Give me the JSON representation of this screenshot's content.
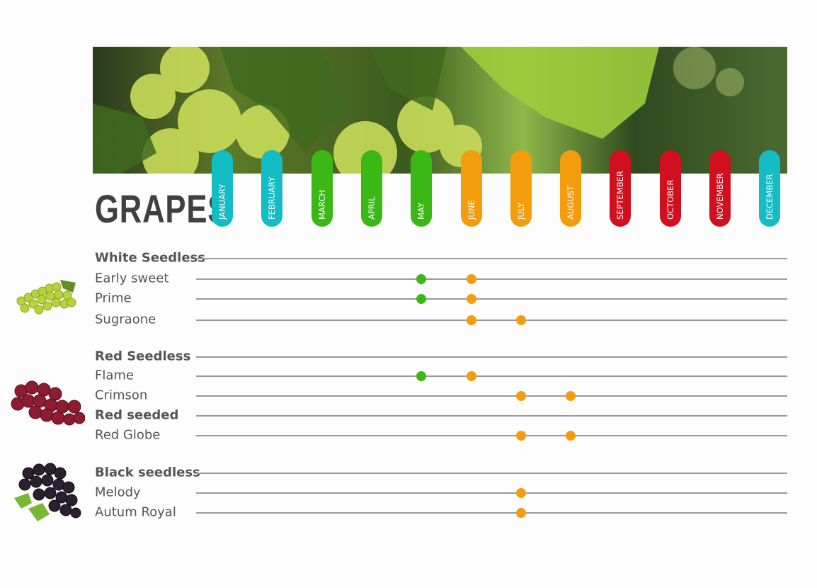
{
  "title": "GRAPES",
  "colors": {
    "winter": "#14bcc4",
    "spring": "#3cb816",
    "summer": "#f39c0c",
    "autumn": "#d0101e"
  },
  "chart_data": {
    "type": "scatter",
    "title": "GRAPES",
    "categories": [
      "JANUARY",
      "FEBRUARY",
      "MARCH",
      "APRIL",
      "MAY",
      "JUNE",
      "JULY",
      "AUGUST",
      "SEPTEMBER",
      "OCTOBER",
      "NOVEMBER",
      "DECEMBER"
    ],
    "month_colors": [
      "winter",
      "winter",
      "spring",
      "spring",
      "spring",
      "summer",
      "summer",
      "summer",
      "autumn",
      "autumn",
      "autumn",
      "winter"
    ],
    "rows": [
      {
        "label": "White Seedless",
        "group": true,
        "months": []
      },
      {
        "label": "Early sweet",
        "group": false,
        "months": [
          "MAY",
          "JUNE"
        ]
      },
      {
        "label": "Prime",
        "group": false,
        "months": [
          "MAY",
          "JUNE"
        ]
      },
      {
        "label": "Sugraone",
        "group": false,
        "months": [
          "JUNE",
          "JULY"
        ]
      },
      {
        "label": "Red Seedless",
        "group": true,
        "months": []
      },
      {
        "label": "Flame",
        "group": false,
        "months": [
          "MAY",
          "JUNE"
        ]
      },
      {
        "label": "Crimson",
        "group": false,
        "months": [
          "JULY",
          "AUGUST"
        ]
      },
      {
        "label": "Red seeded",
        "group": true,
        "months": []
      },
      {
        "label": "Red Globe",
        "group": false,
        "months": [
          "JULY",
          "AUGUST"
        ]
      },
      {
        "label": "Black seedless",
        "group": true,
        "months": []
      },
      {
        "label": "Melody",
        "group": false,
        "months": [
          "JULY"
        ]
      },
      {
        "label": "Autum Royal",
        "group": false,
        "months": [
          "JULY"
        ]
      }
    ],
    "grid": true
  },
  "images": [
    "green-grapes",
    "red-grapes",
    "black-grapes"
  ]
}
